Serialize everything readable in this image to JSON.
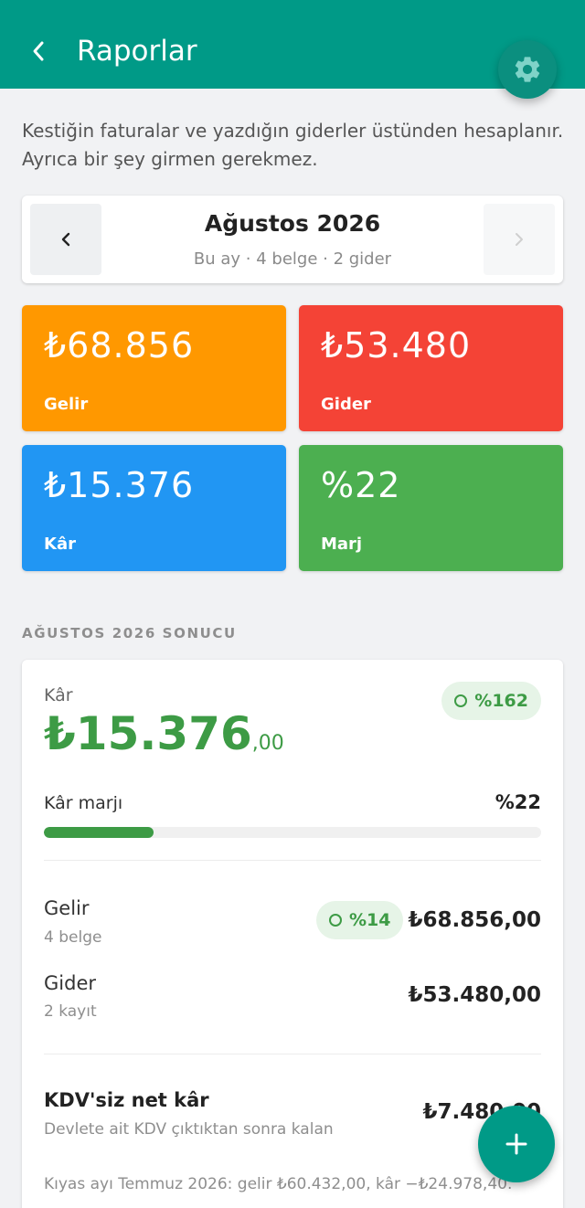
{
  "appbar": {
    "title": "Raporlar",
    "back_icon": "chevron-left-icon",
    "settings_icon": "gear-icon"
  },
  "intro": "Kestiğin faturalar ve yazdığın giderler üstünden hesaplanır. Ayrıca bir şey girmen gerekmez.",
  "month": {
    "name": "Ağustos 2026",
    "subtitle": "Bu ay · 4 belge · 2 gider"
  },
  "tiles": {
    "gelir": {
      "value": "₺68.856",
      "label": "Gelir",
      "color": "#ff9800"
    },
    "gider": {
      "value": "₺53.480",
      "label": "Gider",
      "color": "#f44336"
    },
    "kar": {
      "value": "₺15.376",
      "label": "Kâr",
      "color": "#2196f3"
    },
    "marj": {
      "value": "%22",
      "label": "Marj",
      "color": "#4caf50"
    }
  },
  "section_title": "AĞUSTOS 2026 SONUCU",
  "result": {
    "label": "Kâr",
    "amount_int": "₺15.376",
    "amount_dec": ",00",
    "change_pill": "%162",
    "margin_label": "Kâr marjı",
    "margin_value": "%22",
    "margin_fraction": 0.22,
    "gelir_title": "Gelir",
    "gelir_sub": "4 belge",
    "gelir_pill": "%14",
    "gelir_value": "₺68.856,00",
    "gider_title": "Gider",
    "gider_sub": "2 kayıt",
    "gider_value": "₺53.480,00",
    "kdv_title": "KDV'siz net kâr",
    "kdv_sub": "Devlete ait KDV çıktıktan sonra kalan",
    "kdv_value": "₺7.480,00",
    "compare": "Kıyas ayı Temmuz 2026: gelir ₺60.432,00, kâr −₺24.978,40."
  },
  "colors": {
    "primary": "#009a87",
    "positive": "#3d9b45"
  }
}
